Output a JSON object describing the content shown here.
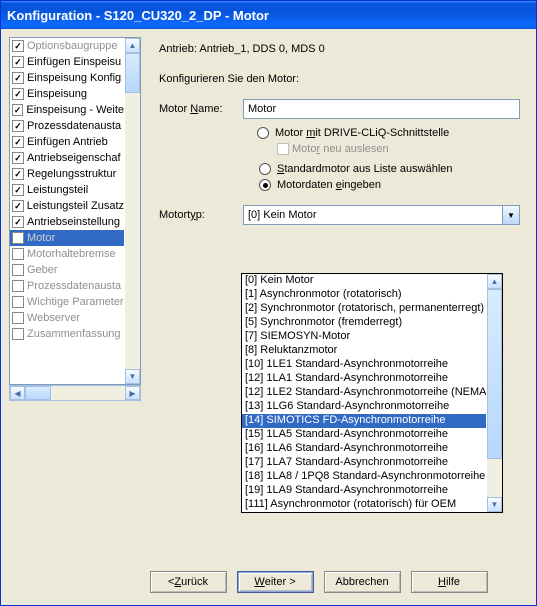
{
  "titlebar": "Konfiguration - S120_CU320_2_DP - Motor",
  "header_line": "Antrieb: Antrieb_1, DDS 0, MDS 0",
  "configure_label": "Konfigurieren Sie den Motor:",
  "motor_name_label_pre": "Motor ",
  "motor_name_label_u": "N",
  "motor_name_label_post": "ame:",
  "motor_name_value": "Motor",
  "radio1_pre": "Motor ",
  "radio1_u": "m",
  "radio1_post": "it DRIVE-CLiQ-Schnittstelle",
  "subcheck_pre": "Moto",
  "subcheck_u": "r",
  "subcheck_post": " neu auslesen",
  "radio2_u": "S",
  "radio2_post": "tandardmotor aus Liste auswählen",
  "radio3_pre": "Motordaten ",
  "radio3_u": "e",
  "radio3_post": "ingeben",
  "motortyp_label_pre": "Motort",
  "motortyp_label_u": "y",
  "motortyp_label_post": "p:",
  "motortyp_value": "[0] Kein Motor",
  "dd": [
    "[0] Kein Motor",
    "[1] Asynchronmotor (rotatorisch)",
    "[2] Synchronmotor (rotatorisch, permanenterregt)",
    "[5] Synchronmotor (fremderregt)",
    "[7] SIEMOSYN-Motor",
    "[8] Reluktanzmotor",
    "[10] 1LE1 Standard-Asynchronmotorreihe",
    "[12] 1LA1 Standard-Asynchronmotorreihe",
    "[12] 1LE2 Standard-Asynchronmotorreihe (NEMA)",
    "[13] 1LG6 Standard-Asynchronmotorreihe",
    "[14] SIMOTICS FD-Asynchronmotorreihe",
    "[15] 1LA5 Standard-Asynchronmotorreihe",
    "[16] 1LA6 Standard-Asynchronmotorreihe",
    "[17] 1LA7 Standard-Asynchronmotorreihe",
    "[18] 1LA8 / 1PQ8 Standard-Asynchronmotorreihe",
    "[19] 1LA9 Standard-Asynchronmotorreihe",
    "[111] Asynchronmotor (rotatorisch) für OEM"
  ],
  "dd_selected_index": 10,
  "tree": [
    {
      "label": "Optionsbaugruppe",
      "checked": true,
      "disabled": true
    },
    {
      "label": "Einfügen Einspeisu",
      "checked": true,
      "disabled": false
    },
    {
      "label": "Einspeisung Konfig",
      "checked": true,
      "disabled": false
    },
    {
      "label": "Einspeisung",
      "checked": true,
      "disabled": false
    },
    {
      "label": "Einspeisung - Weite",
      "checked": true,
      "disabled": false
    },
    {
      "label": "Prozessdatenausta",
      "checked": true,
      "disabled": false
    },
    {
      "label": "Einfügen Antrieb",
      "checked": true,
      "disabled": false
    },
    {
      "label": "Antriebseigenschaf",
      "checked": true,
      "disabled": false
    },
    {
      "label": "Regelungsstruktur",
      "checked": true,
      "disabled": false
    },
    {
      "label": "Leistungsteil",
      "checked": true,
      "disabled": false
    },
    {
      "label": "Leistungsteil Zusatz",
      "checked": true,
      "disabled": false
    },
    {
      "label": "Antriebseinstellung",
      "checked": true,
      "disabled": false
    },
    {
      "label": "Motor",
      "checked": false,
      "disabled": true,
      "sel": true
    },
    {
      "label": "Motorhaltebremse",
      "checked": false,
      "disabled": true
    },
    {
      "label": "Geber",
      "checked": false,
      "disabled": true
    },
    {
      "label": "Prozessdatenausta",
      "checked": false,
      "disabled": true
    },
    {
      "label": "Wichtige Parameter",
      "checked": false,
      "disabled": true
    },
    {
      "label": "Webserver",
      "checked": false,
      "disabled": true
    },
    {
      "label": "Zusammenfassung",
      "checked": false,
      "disabled": true
    }
  ],
  "btn_back_pre": "< ",
  "btn_back_u": "Z",
  "btn_back_post": "urück",
  "btn_next_u": "W",
  "btn_next_post": "eiter >",
  "btn_cancel": "Abbrechen",
  "btn_help_u": "H",
  "btn_help_post": "ilfe"
}
